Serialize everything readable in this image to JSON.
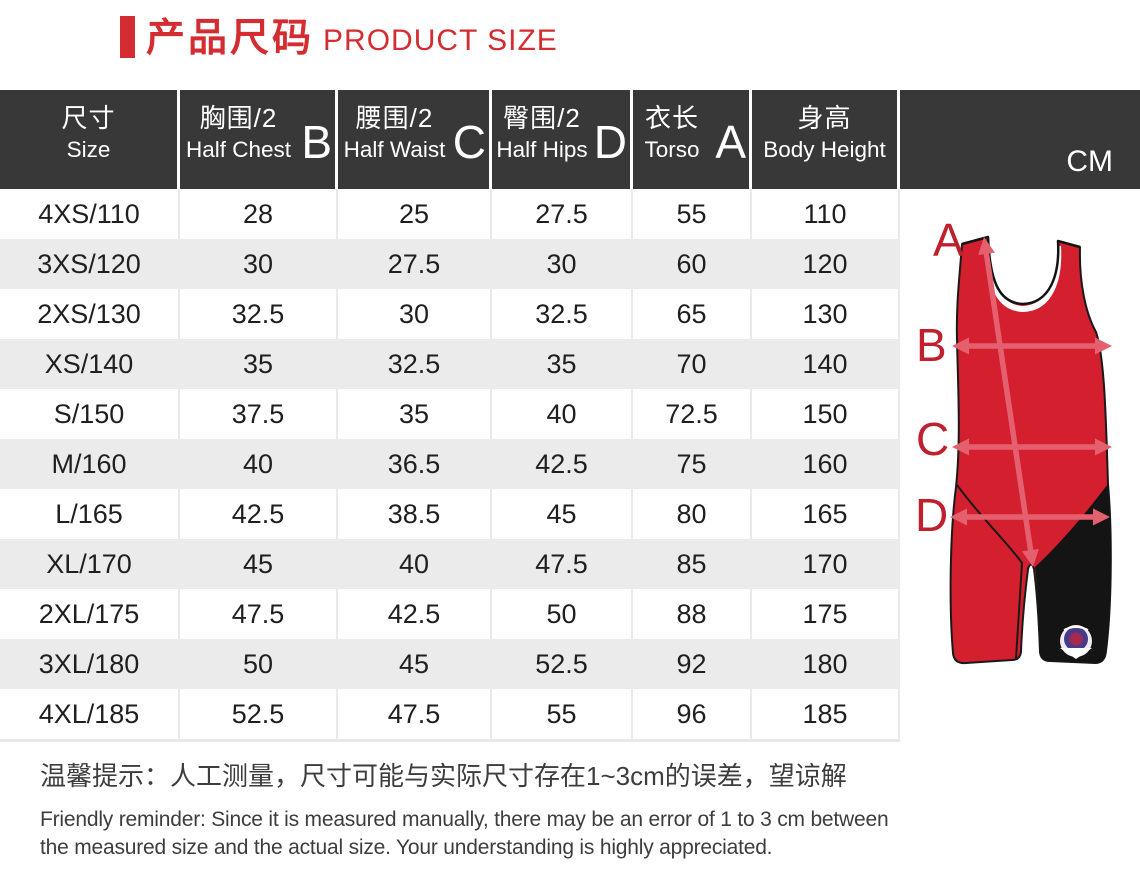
{
  "title": {
    "cn": "产品尺码",
    "en": "PRODUCT SIZE"
  },
  "table": {
    "unit_label": "CM",
    "columns": [
      {
        "cn": "尺寸",
        "en": "Size",
        "letter": ""
      },
      {
        "cn": "胸围/2",
        "en": "Half Chest",
        "letter": "B"
      },
      {
        "cn": "腰围/2",
        "en": "Half Waist",
        "letter": "C"
      },
      {
        "cn": "臀围/2",
        "en": "Half Hips",
        "letter": "D"
      },
      {
        "cn": "衣长",
        "en": "Torso",
        "letter": "A"
      },
      {
        "cn": "身高",
        "en": "Body Height",
        "letter": ""
      }
    ],
    "rows": [
      {
        "cells": [
          "4XS/110",
          "28",
          "25",
          "27.5",
          "55",
          "110"
        ]
      },
      {
        "cells": [
          "3XS/120",
          "30",
          "27.5",
          "30",
          "60",
          "120"
        ]
      },
      {
        "cells": [
          "2XS/130",
          "32.5",
          "30",
          "32.5",
          "65",
          "130"
        ]
      },
      {
        "cells": [
          "XS/140",
          "35",
          "32.5",
          "35",
          "70",
          "140"
        ]
      },
      {
        "cells": [
          "S/150",
          "37.5",
          "35",
          "40",
          "72.5",
          "150"
        ]
      },
      {
        "cells": [
          "M/160",
          "40",
          "36.5",
          "42.5",
          "75",
          "160"
        ]
      },
      {
        "cells": [
          "L/165",
          "42.5",
          "38.5",
          "45",
          "80",
          "165"
        ]
      },
      {
        "cells": [
          "XL/170",
          "45",
          "40",
          "47.5",
          "85",
          "170"
        ]
      },
      {
        "cells": [
          "2XL/175",
          "47.5",
          "42.5",
          "50",
          "88",
          "175"
        ]
      },
      {
        "cells": [
          "3XL/180",
          "50",
          "45",
          "52.5",
          "92",
          "180"
        ]
      },
      {
        "cells": [
          "4XL/185",
          "52.5",
          "47.5",
          "55",
          "96",
          "185"
        ]
      }
    ]
  },
  "figure": {
    "labels": [
      "A",
      "B",
      "C",
      "D"
    ]
  },
  "notes": {
    "cn": "温馨提示：人工测量，尺寸可能与实际尺寸存在1~3cm的误差，望谅解",
    "en": "Friendly reminder: Since it is measured manually, there may be an error of 1 to 3 cm between the measured size and the actual size. Your understanding is highly appreciated."
  },
  "colors": {
    "accent_red": "#d42d31",
    "header_bg": "#383838",
    "row_alt": "#ebebeb",
    "suit_red": "#d31f2e",
    "suit_black": "#141414",
    "arrow_pink": "#e4606e",
    "letter_red": "#c0202e"
  }
}
